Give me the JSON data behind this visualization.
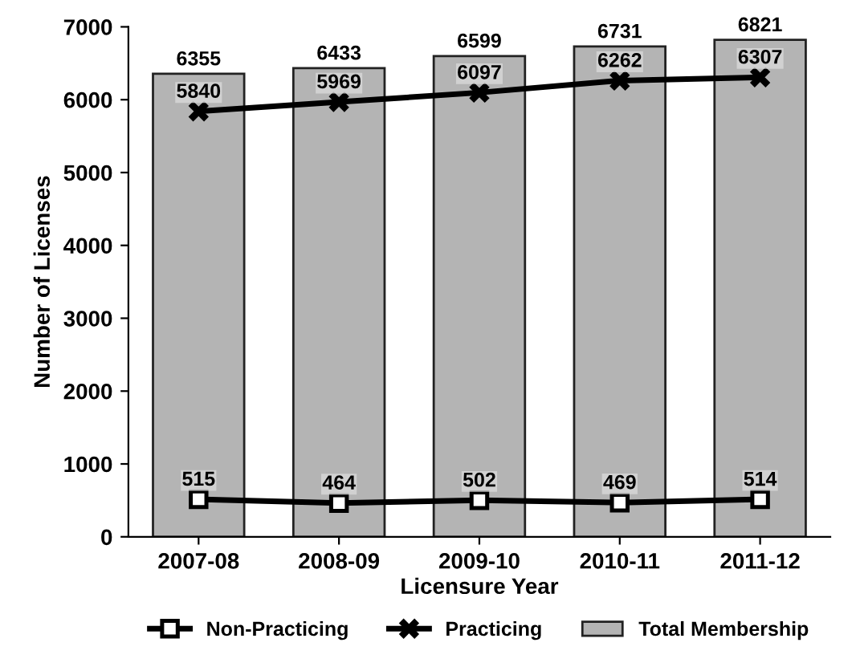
{
  "chart_data": {
    "type": "bar",
    "xlabel": "Licensure Year",
    "ylabel": "Number of Licenses",
    "categories": [
      "2007-08",
      "2008-09",
      "2009-10",
      "2010-11",
      "2011-12"
    ],
    "series": [
      {
        "name": "Non-Practicing",
        "type": "line",
        "color": "#000000",
        "marker": "square",
        "values": [
          515,
          464,
          502,
          469,
          514
        ]
      },
      {
        "name": "Practicing",
        "type": "line",
        "color": "#000000",
        "marker": "cross",
        "values": [
          5840,
          5969,
          6097,
          6262,
          6307
        ]
      },
      {
        "name": "Total Membership",
        "color": "#b4b4b4",
        "values": [
          6355,
          6433,
          6599,
          6731,
          6821
        ]
      }
    ],
    "ylim": [
      0,
      7000
    ],
    "yticks": [
      0,
      1000,
      2000,
      3000,
      4000,
      5000,
      6000,
      7000
    ],
    "data_labels": true,
    "legend": "bottom",
    "grid": false
  }
}
